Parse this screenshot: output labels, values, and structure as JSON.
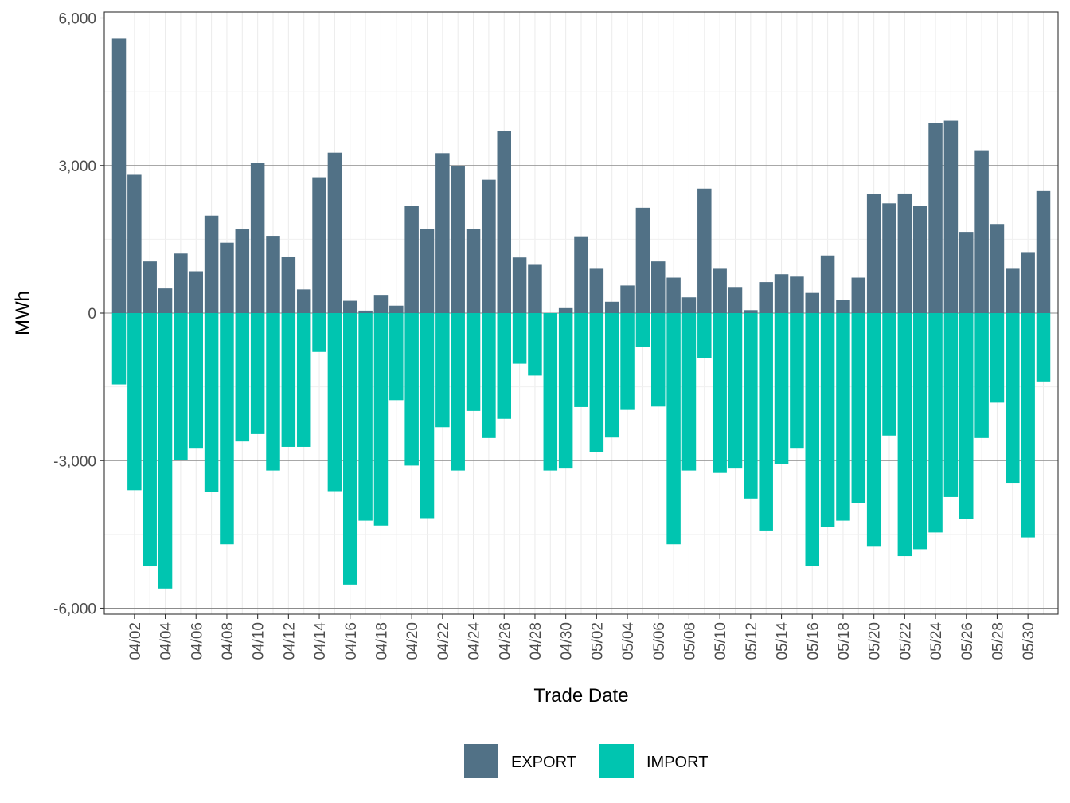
{
  "chart_data": {
    "type": "bar",
    "stacked": "diverging",
    "xlabel": "Trade Date",
    "ylabel": "MWh",
    "ylim": [
      -6000,
      6000
    ],
    "yticks": [
      -6000,
      -3000,
      0,
      3000,
      6000
    ],
    "ytick_labels": [
      "-6,000",
      "-3,000",
      "0",
      "3,000",
      "6,000"
    ],
    "grid": true,
    "legend_position": "bottom",
    "dates": [
      "04/01",
      "04/02",
      "04/03",
      "04/04",
      "04/05",
      "04/06",
      "04/07",
      "04/08",
      "04/09",
      "04/10",
      "04/11",
      "04/12",
      "04/13",
      "04/14",
      "04/15",
      "04/16",
      "04/17",
      "04/18",
      "04/19",
      "04/20",
      "04/21",
      "04/22",
      "04/23",
      "04/24",
      "04/25",
      "04/26",
      "04/27",
      "04/28",
      "04/29",
      "04/30",
      "05/01",
      "05/02",
      "05/03",
      "05/04",
      "05/05",
      "05/06",
      "05/07",
      "05/08",
      "05/09",
      "05/10",
      "05/11",
      "05/12",
      "05/13",
      "05/14",
      "05/15",
      "05/16",
      "05/17",
      "05/18",
      "05/19",
      "05/20",
      "05/21",
      "05/22",
      "05/23",
      "05/24",
      "05/25",
      "05/26",
      "05/27",
      "05/28",
      "05/29",
      "05/30",
      "05/31"
    ],
    "tick_labels": [
      "04/02",
      "04/04",
      "04/06",
      "04/08",
      "04/10",
      "04/12",
      "04/14",
      "04/16",
      "04/18",
      "04/20",
      "04/22",
      "04/24",
      "04/26",
      "04/28",
      "04/30",
      "05/02",
      "05/04",
      "05/06",
      "05/08",
      "05/10",
      "05/12",
      "05/14",
      "05/16",
      "05/18",
      "05/20",
      "05/22",
      "05/24",
      "05/26",
      "05/28",
      "05/30"
    ],
    "series": [
      {
        "name": "EXPORT",
        "color": "#517186",
        "values": [
          5580,
          2810,
          1050,
          500,
          1210,
          850,
          1980,
          1430,
          1700,
          3050,
          1570,
          1150,
          480,
          2760,
          3260,
          250,
          50,
          370,
          150,
          2180,
          1710,
          3250,
          2980,
          1710,
          2710,
          3700,
          1130,
          980,
          0,
          100,
          1560,
          900,
          230,
          560,
          2140,
          1050,
          720,
          320,
          2530,
          900,
          530,
          60,
          630,
          790,
          740,
          410,
          1170,
          260,
          720,
          2420,
          2230,
          2430,
          2170,
          3870,
          3910,
          1650,
          3310,
          1810,
          900,
          1240,
          2480
        ]
      },
      {
        "name": "IMPORT",
        "color": "#00c5b0",
        "values": [
          -1450,
          -3600,
          -5150,
          -5600,
          -2980,
          -2740,
          -3640,
          -4700,
          -2610,
          -2460,
          -3200,
          -2720,
          -2720,
          -790,
          -3620,
          -5520,
          -4220,
          -4320,
          -1770,
          -3100,
          -4170,
          -2320,
          -3200,
          -1990,
          -2540,
          -2150,
          -1030,
          -1270,
          -3200,
          -3160,
          -1910,
          -2820,
          -2530,
          -1970,
          -680,
          -1900,
          -4700,
          -3200,
          -920,
          -3250,
          -3160,
          -3770,
          -4420,
          -3070,
          -2740,
          -5150,
          -4350,
          -4220,
          -3870,
          -4750,
          -2490,
          -4940,
          -4800,
          -4460,
          -3740,
          -4180,
          -2540,
          -1820,
          -3450,
          -4560,
          -1390
        ]
      }
    ]
  }
}
